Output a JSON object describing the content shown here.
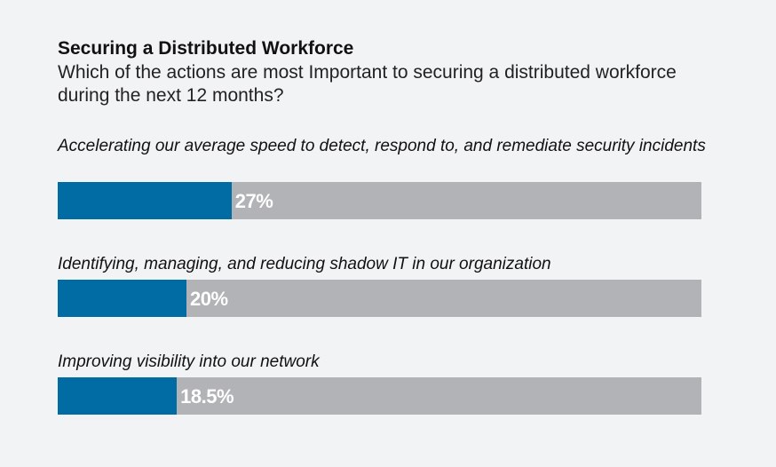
{
  "chart_data": {
    "type": "bar",
    "orientation": "horizontal",
    "title": "Securing a Distributed Workforce",
    "subtitle": "Which of the actions are most Important to securing a distributed workforce during the next 12 months?",
    "categories": [
      "Accelerating our average speed to detect, respond to, and remediate security incidents",
      "Identifying, managing, and reducing shadow IT in our organization",
      "Improving visibility into our network"
    ],
    "values": [
      27,
      20,
      18.5
    ],
    "value_labels": [
      "27%",
      "20%",
      "18.5%"
    ],
    "xlim": [
      0,
      100
    ],
    "grid": false,
    "legend": "none"
  },
  "colors": {
    "bar_fill": "#006ca3",
    "bar_track": "#b2b3b6",
    "value_text": "#ffffff",
    "background": "#f2f3f5"
  }
}
